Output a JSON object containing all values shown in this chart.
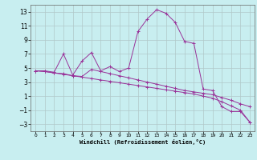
{
  "title": "",
  "xlabel": "Windchill (Refroidissement éolien,°C)",
  "bg_color": "#c8eef0",
  "grid_color": "#b0c8c8",
  "line_color": "#993399",
  "xlim": [
    -0.5,
    23.5
  ],
  "ylim": [
    -4.0,
    14.0
  ],
  "yticks": [
    -3,
    -1,
    1,
    3,
    5,
    7,
    9,
    11,
    13
  ],
  "xticks": [
    0,
    1,
    2,
    3,
    4,
    5,
    6,
    7,
    8,
    9,
    10,
    11,
    12,
    13,
    14,
    15,
    16,
    17,
    18,
    19,
    20,
    21,
    22,
    23
  ],
  "x": [
    0,
    1,
    2,
    3,
    4,
    5,
    6,
    7,
    8,
    9,
    10,
    11,
    12,
    13,
    14,
    15,
    16,
    17,
    18,
    19,
    20,
    21,
    22,
    23
  ],
  "y_main": [
    4.6,
    4.6,
    4.4,
    7.0,
    4.0,
    6.0,
    7.2,
    4.6,
    5.2,
    4.5,
    5.0,
    10.2,
    12.0,
    13.3,
    12.8,
    11.5,
    8.8,
    8.5,
    2.0,
    1.8,
    -0.5,
    -1.2,
    -1.2,
    -2.7
  ],
  "y_line2": [
    4.6,
    4.5,
    4.3,
    4.2,
    3.9,
    3.8,
    4.8,
    4.5,
    4.2,
    3.9,
    3.6,
    3.3,
    3.0,
    2.7,
    2.4,
    2.1,
    1.8,
    1.6,
    1.4,
    1.2,
    0.8,
    0.4,
    -0.1,
    -0.5
  ],
  "y_line3": [
    4.6,
    4.5,
    4.3,
    4.1,
    3.9,
    3.7,
    3.5,
    3.3,
    3.1,
    2.9,
    2.7,
    2.5,
    2.3,
    2.1,
    1.9,
    1.7,
    1.5,
    1.3,
    1.0,
    0.7,
    0.2,
    -0.4,
    -1.0,
    -2.7
  ]
}
